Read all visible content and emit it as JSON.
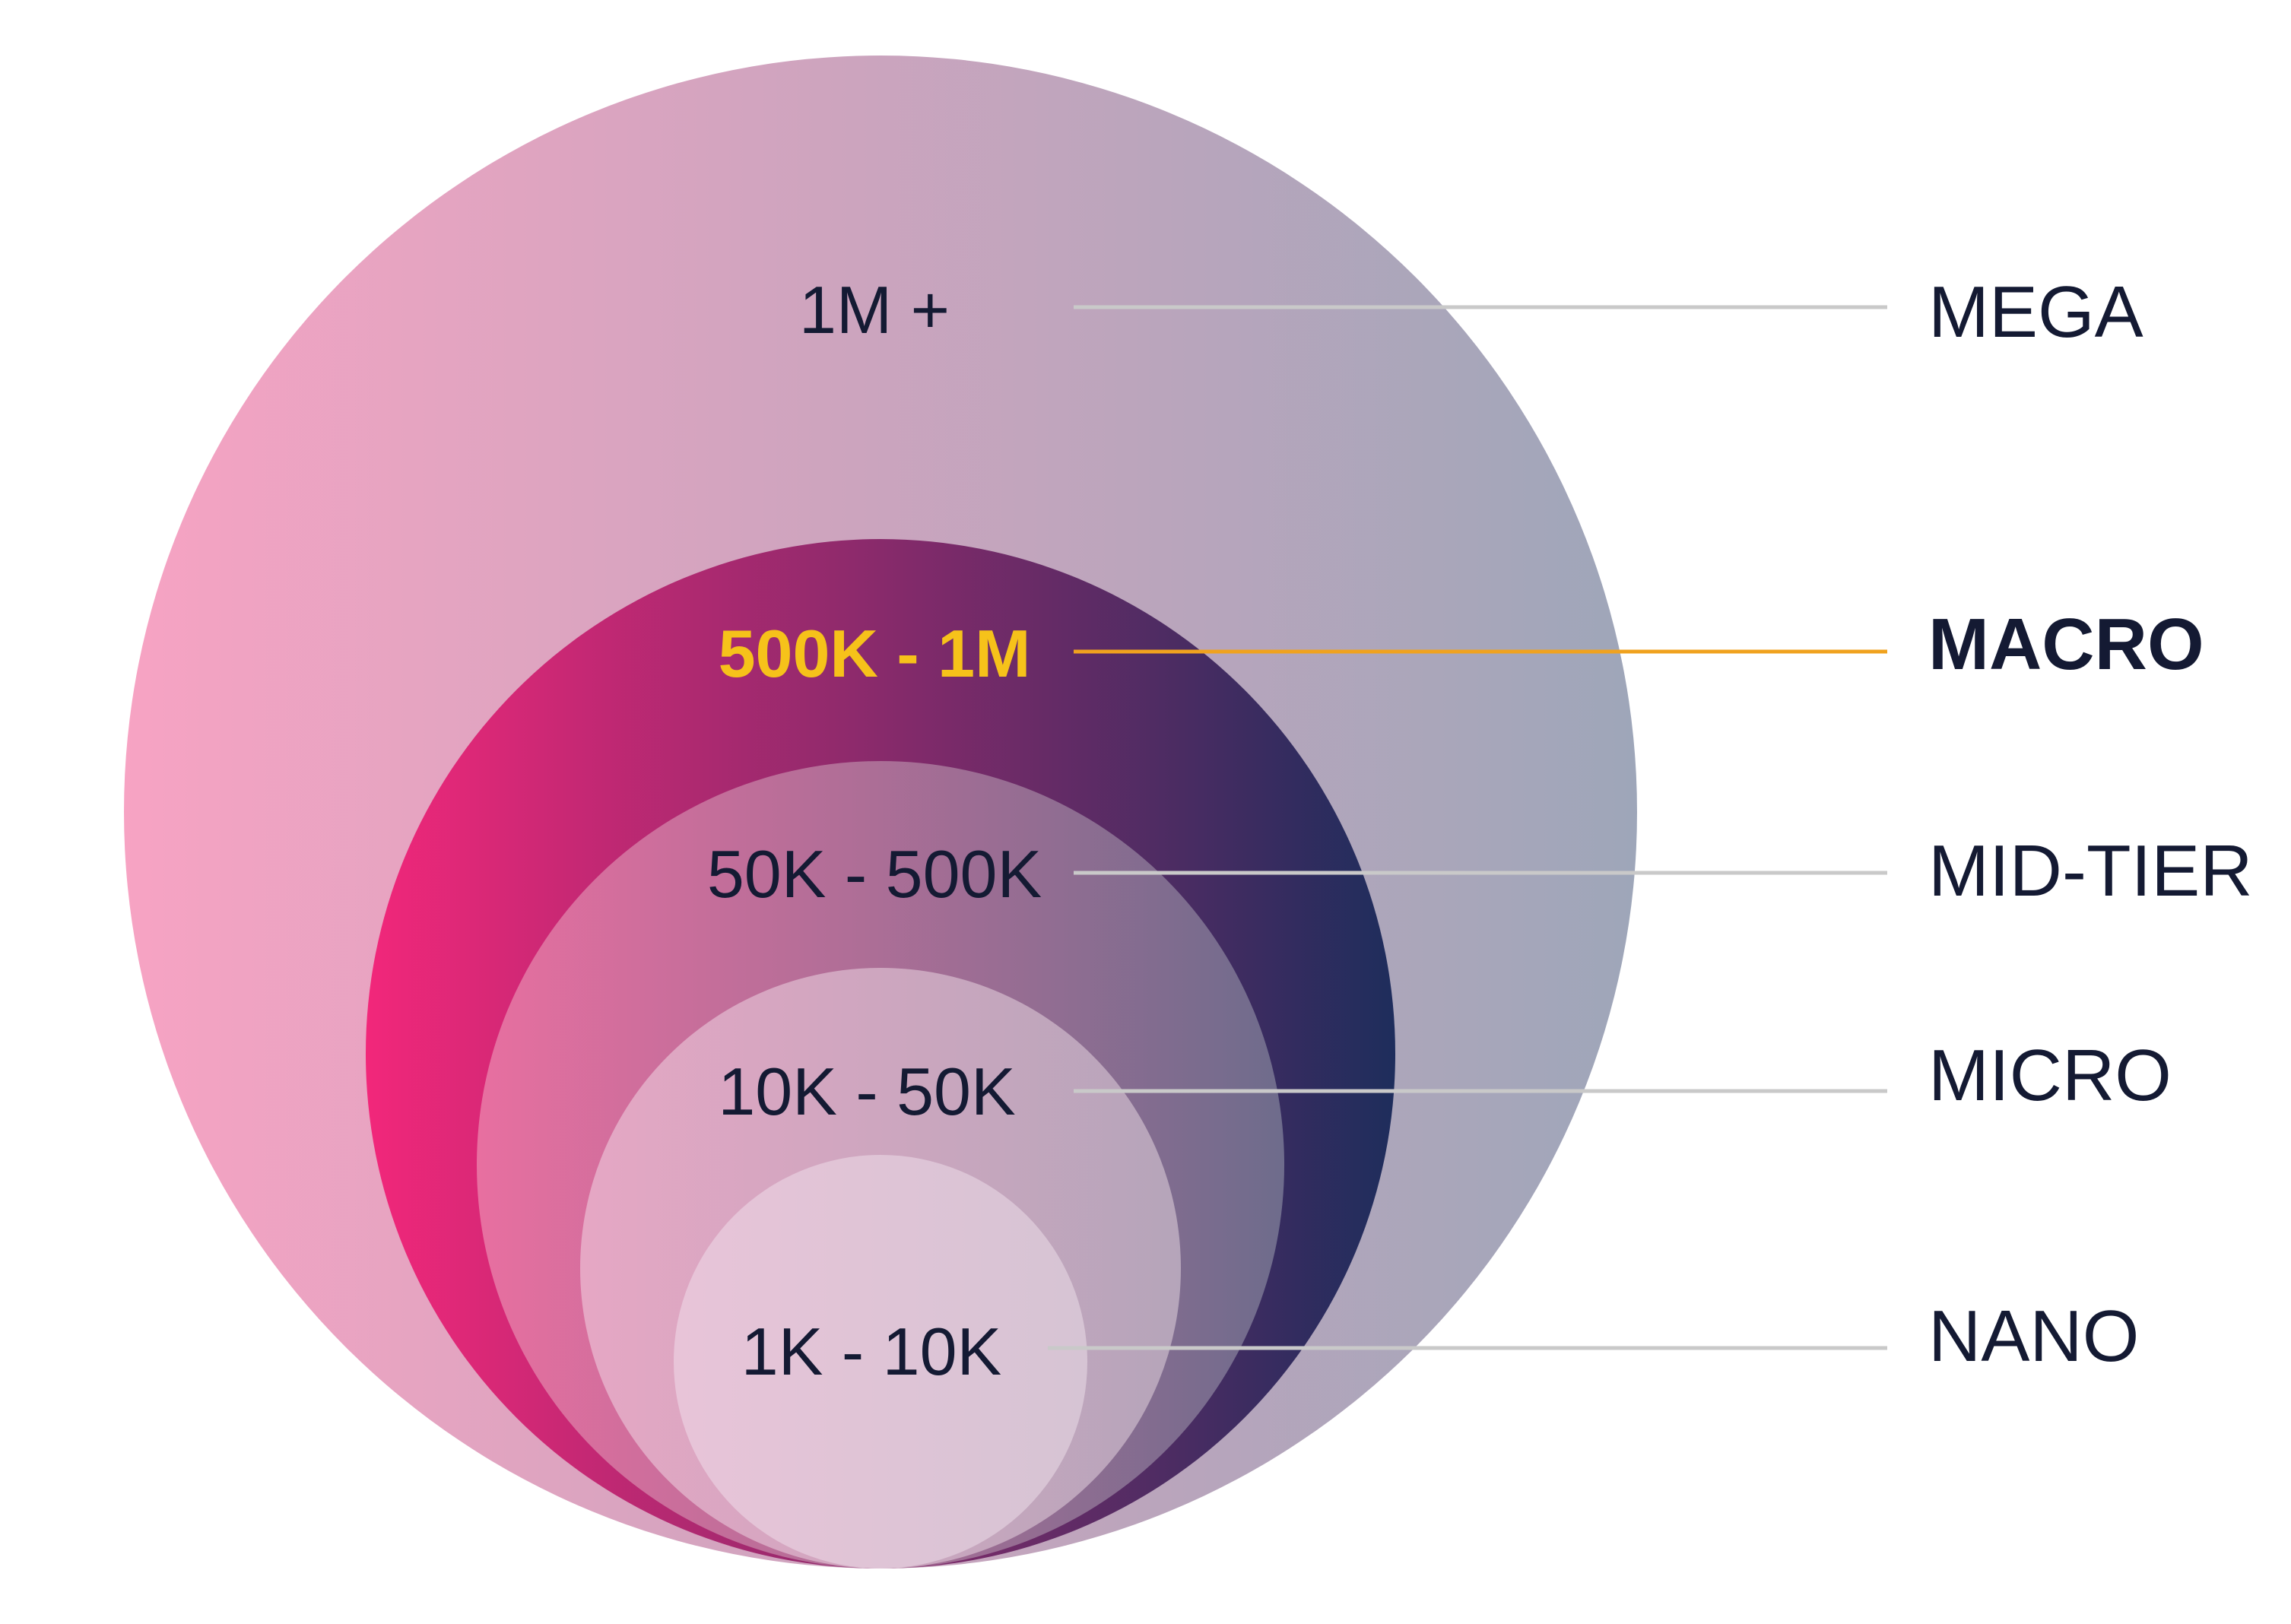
{
  "tiers": [
    {
      "id": "mega",
      "range": "1M +",
      "name": "MEGA",
      "highlight": false,
      "fill_start": "#f7a3c3",
      "fill_end": "#9ea6b9"
    },
    {
      "id": "macro",
      "range": "500K - 1M",
      "name": "MACRO",
      "highlight": true,
      "fill_start": "#f2277a",
      "fill_end": "#1e2d5c"
    },
    {
      "id": "mid-tier",
      "range": "50K - 500K",
      "name": "MID-TIER",
      "highlight": false,
      "fill_start": "#e86fa0",
      "fill_end": "#6e6c8c"
    },
    {
      "id": "micro",
      "range": "10K - 50K",
      "name": "MICRO",
      "highlight": false,
      "fill_start": "#e6a7c4",
      "fill_end": "#b5a5ba"
    },
    {
      "id": "nano",
      "range": "1K - 10K",
      "name": "NANO",
      "highlight": false,
      "fill_start": "#e8c4d8",
      "fill_end": "#d6c4d4"
    }
  ],
  "colors": {
    "label_text": "#141a33",
    "highlight_text": "#f6c21a",
    "leader_line": "#c9c9c9",
    "highlight_leader": "#f0a21e"
  }
}
